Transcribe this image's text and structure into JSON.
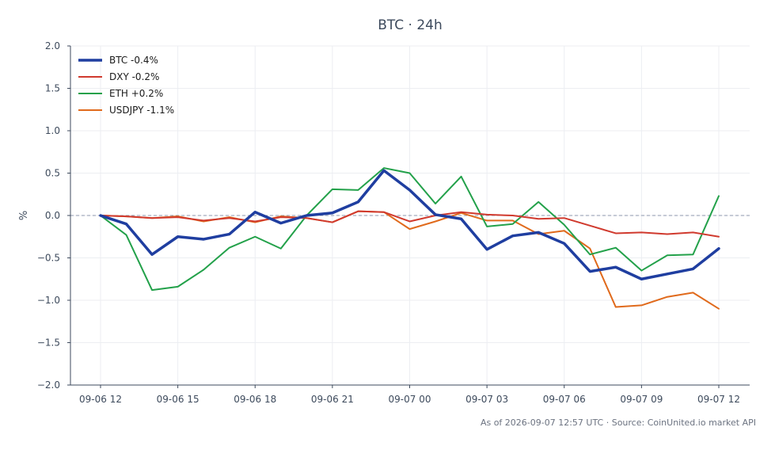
{
  "chart_data": {
    "type": "line",
    "title": "BTC · 24h",
    "xlabel": "",
    "ylabel": "%",
    "ylim": [
      -2.0,
      2.0
    ],
    "yticks": [
      2.0,
      1.5,
      1.0,
      0.5,
      0.0,
      -0.5,
      -1.0,
      -1.5,
      -2.0
    ],
    "ytick_labels": [
      "2.0",
      "1.5",
      "1.0",
      "0.5",
      "0.0",
      "−0.5",
      "−1.0",
      "−1.5",
      "−2.0"
    ],
    "x_start": "2026-09-06 12:00",
    "x_end": "2026-09-07 12:00",
    "x": [
      "2026-09-06 12:00",
      "2026-09-06 13:00",
      "2026-09-06 14:00",
      "2026-09-06 15:00",
      "2026-09-06 16:00",
      "2026-09-06 17:00",
      "2026-09-06 18:00",
      "2026-09-06 19:00",
      "2026-09-06 20:00",
      "2026-09-06 21:00",
      "2026-09-06 22:00",
      "2026-09-06 23:00",
      "2026-09-07 00:00",
      "2026-09-07 01:00",
      "2026-09-07 02:00",
      "2026-09-07 03:00",
      "2026-09-07 04:00",
      "2026-09-07 05:00",
      "2026-09-07 06:00",
      "2026-09-07 07:00",
      "2026-09-07 08:00",
      "2026-09-07 09:00",
      "2026-09-07 10:00",
      "2026-09-07 11:00",
      "2026-09-07 12:00"
    ],
    "xticks": [
      "2026-09-06 12:00",
      "2026-09-06 15:00",
      "2026-09-06 18:00",
      "2026-09-06 21:00",
      "2026-09-07 00:00",
      "2026-09-07 03:00",
      "2026-09-07 06:00",
      "2026-09-07 09:00",
      "2026-09-07 12:00"
    ],
    "xtick_labels": [
      "09-06 12",
      "09-06 15",
      "09-06 18",
      "09-06 21",
      "09-07 00",
      "09-07 03",
      "09-07 06",
      "09-07 09",
      "09-07 12"
    ],
    "zero_line": true,
    "grid": true,
    "legend_position": "top-left",
    "series": [
      {
        "name": "BTC -0.4%",
        "color": "#1f3ea0",
        "width": 3.5,
        "values": [
          0.0,
          -0.1,
          -0.46,
          -0.25,
          -0.28,
          -0.22,
          0.04,
          -0.09,
          0.0,
          0.03,
          0.16,
          0.53,
          0.3,
          0.01,
          -0.04,
          -0.4,
          -0.24,
          -0.2,
          -0.33,
          -0.66,
          -0.61,
          -0.75,
          -0.69,
          -0.63,
          -0.39
        ]
      },
      {
        "name": "DXY -0.2%",
        "color": "#d03a2e",
        "width": 2,
        "values": [
          0.0,
          -0.01,
          -0.03,
          -0.02,
          -0.06,
          -0.03,
          -0.07,
          -0.02,
          -0.03,
          -0.08,
          0.05,
          0.04,
          -0.07,
          0.0,
          0.04,
          0.01,
          0.0,
          -0.04,
          -0.03,
          -0.12,
          -0.21,
          -0.2,
          -0.22,
          -0.2,
          -0.25
        ]
      },
      {
        "name": "ETH +0.2%",
        "color": "#23a14a",
        "width": 2,
        "values": [
          0.0,
          -0.23,
          -0.88,
          -0.84,
          -0.64,
          -0.38,
          -0.25,
          -0.39,
          0.0,
          0.31,
          0.3,
          0.56,
          0.5,
          0.14,
          0.46,
          -0.13,
          -0.1,
          0.16,
          -0.11,
          -0.46,
          -0.38,
          -0.65,
          -0.47,
          -0.46,
          0.23
        ]
      },
      {
        "name": "USDJPY -1.1%",
        "color": "#e06a1c",
        "width": 2,
        "values": [
          0.0,
          -0.01,
          -0.03,
          -0.01,
          -0.07,
          -0.02,
          -0.08,
          -0.01,
          -0.03,
          -0.08,
          0.05,
          0.04,
          -0.16,
          -0.07,
          0.03,
          -0.06,
          -0.06,
          -0.22,
          -0.18,
          -0.39,
          -1.08,
          -1.06,
          -0.96,
          -0.91,
          -1.1
        ]
      }
    ],
    "footer": "As of 2026-09-07 12:57 UTC · Source: CoinUnited.io market API"
  }
}
